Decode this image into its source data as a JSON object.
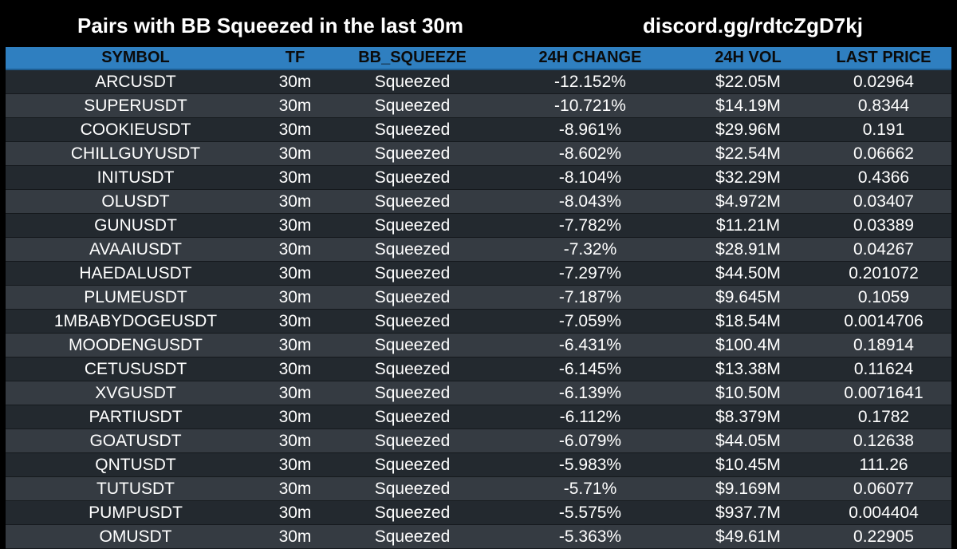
{
  "header": {
    "title": "Pairs with BB Squeezed in the last 30m",
    "discord": "discord.gg/rdtcZgD7kj"
  },
  "colors": {
    "background": "#000000",
    "header_row": "#2f7fc0",
    "row_dark": "#23292f",
    "row_light": "#353b42"
  },
  "table": {
    "columns": [
      "SYMBOL",
      "TF",
      "BB_SQUEEZE",
      "24H CHANGE",
      "24H VOL",
      "LAST PRICE"
    ],
    "rows": [
      [
        "ARCUSDT",
        "30m",
        "Squeezed",
        "-12.152%",
        "$22.05M",
        "0.02964"
      ],
      [
        "SUPERUSDT",
        "30m",
        "Squeezed",
        "-10.721%",
        "$14.19M",
        "0.8344"
      ],
      [
        "COOKIEUSDT",
        "30m",
        "Squeezed",
        "-8.961%",
        "$29.96M",
        "0.191"
      ],
      [
        "CHILLGUYUSDT",
        "30m",
        "Squeezed",
        "-8.602%",
        "$22.54M",
        "0.06662"
      ],
      [
        "INITUSDT",
        "30m",
        "Squeezed",
        "-8.104%",
        "$32.29M",
        "0.4366"
      ],
      [
        "OLUSDT",
        "30m",
        "Squeezed",
        "-8.043%",
        "$4.972M",
        "0.03407"
      ],
      [
        "GUNUSDT",
        "30m",
        "Squeezed",
        "-7.782%",
        "$11.21M",
        "0.03389"
      ],
      [
        "AVAAIUSDT",
        "30m",
        "Squeezed",
        "-7.32%",
        "$28.91M",
        "0.04267"
      ],
      [
        "HAEDALUSDT",
        "30m",
        "Squeezed",
        "-7.297%",
        "$44.50M",
        "0.201072"
      ],
      [
        "PLUMEUSDT",
        "30m",
        "Squeezed",
        "-7.187%",
        "$9.645M",
        "0.1059"
      ],
      [
        "1MBABYDOGEUSDT",
        "30m",
        "Squeezed",
        "-7.059%",
        "$18.54M",
        "0.0014706"
      ],
      [
        "MOODENGUSDT",
        "30m",
        "Squeezed",
        "-6.431%",
        "$100.4M",
        "0.18914"
      ],
      [
        "CETUSUSDT",
        "30m",
        "Squeezed",
        "-6.145%",
        "$13.38M",
        "0.11624"
      ],
      [
        "XVGUSDT",
        "30m",
        "Squeezed",
        "-6.139%",
        "$10.50M",
        "0.0071641"
      ],
      [
        "PARTIUSDT",
        "30m",
        "Squeezed",
        "-6.112%",
        "$8.379M",
        "0.1782"
      ],
      [
        "GOATUSDT",
        "30m",
        "Squeezed",
        "-6.079%",
        "$44.05M",
        "0.12638"
      ],
      [
        "QNTUSDT",
        "30m",
        "Squeezed",
        "-5.983%",
        "$10.45M",
        "111.26"
      ],
      [
        "TUTUSDT",
        "30m",
        "Squeezed",
        "-5.71%",
        "$9.169M",
        "0.06077"
      ],
      [
        "PUMPUSDT",
        "30m",
        "Squeezed",
        "-5.575%",
        "$937.7M",
        "0.004404"
      ],
      [
        "OMUSDT",
        "30m",
        "Squeezed",
        "-5.363%",
        "$49.61M",
        "0.22905"
      ]
    ]
  }
}
